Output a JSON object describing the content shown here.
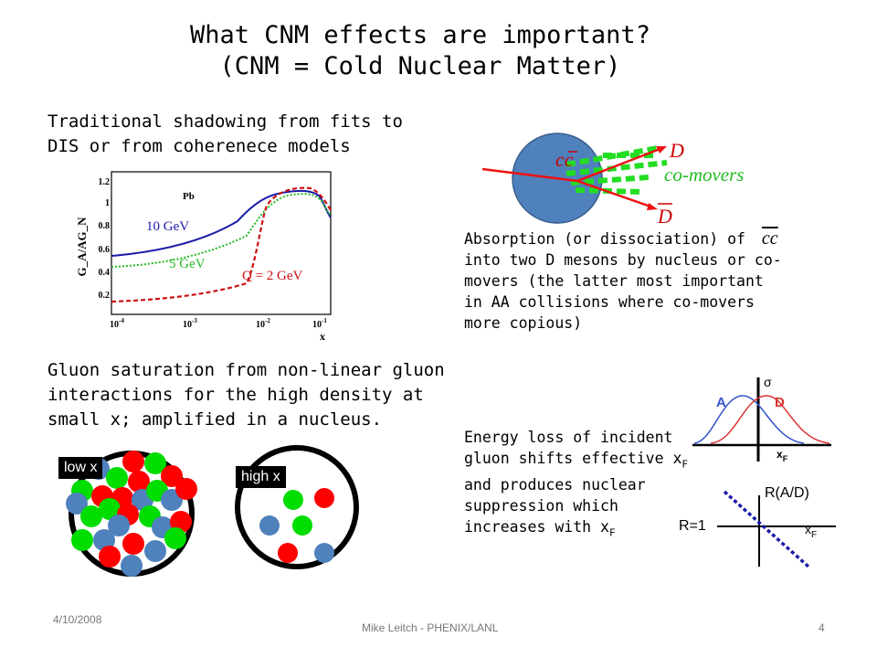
{
  "title": {
    "line1": "What CNM effects are important?",
    "line2": "(CNM = Cold Nuclear Matter)"
  },
  "shadowing": {
    "text_line1": "Traditional shadowing from fits to",
    "text_line2": "DIS or from coherenece models",
    "plot": {
      "ylabel": "G_A/AG_N",
      "xlabel": "x",
      "nucleus": "Pb",
      "ytick_labels": [
        "1.2",
        "1",
        "0.8",
        "0.6",
        "0.4",
        "0.2"
      ],
      "xtick_labels": [
        "10",
        "10",
        "10",
        "10"
      ],
      "xtick_exponents": [
        "-4",
        "-3",
        "-2",
        "-1"
      ],
      "curve_labels": [
        "10 GeV",
        "5 GeV",
        "Q = 2 GeV"
      ],
      "colors": {
        "q10": "#1a1aaa",
        "q5": "#22bb22",
        "q2": "#cc1111"
      }
    }
  },
  "absorption": {
    "diagram": {
      "cc_label": "cc",
      "d_label": "D",
      "dbar_label": "D",
      "comovers_label": "co-movers"
    },
    "text_line1_prefix": "Absorption (or dissociation) of",
    "cc_inline": "cc",
    "text_lines": [
      "into two D mesons by nucleus or co-",
      "movers (the latter most important",
      "in AA collisions where co-movers",
      "more copious)"
    ]
  },
  "saturation": {
    "text_lines": [
      "Gluon saturation from non-linear gluon",
      "interactions for the high density at",
      "small x; amplified in a nucleus."
    ],
    "low_x_label": "low x",
    "high_x_label": "high x",
    "colors": {
      "red": "#ff0000",
      "green": "#00dd00",
      "blue": "#4f81bd"
    }
  },
  "energy_loss": {
    "text_lines": [
      "Energy loss of incident",
      "gluon shifts effective x",
      "and produces nuclear",
      "suppression which",
      "increases with x"
    ],
    "subscript": "F",
    "plot1": {
      "sigma_label": "σ",
      "a_label": "A",
      "d_label": "D",
      "x_label": "x",
      "x_sub": "F"
    },
    "plot2": {
      "ylabel": "R(A/D)",
      "r1_label": "R=1",
      "x_label": "x",
      "x_sub": "F"
    }
  },
  "footer": {
    "date": "4/10/2008",
    "author": "Mike Leitch - PHENIX/LANL",
    "page": "4"
  }
}
